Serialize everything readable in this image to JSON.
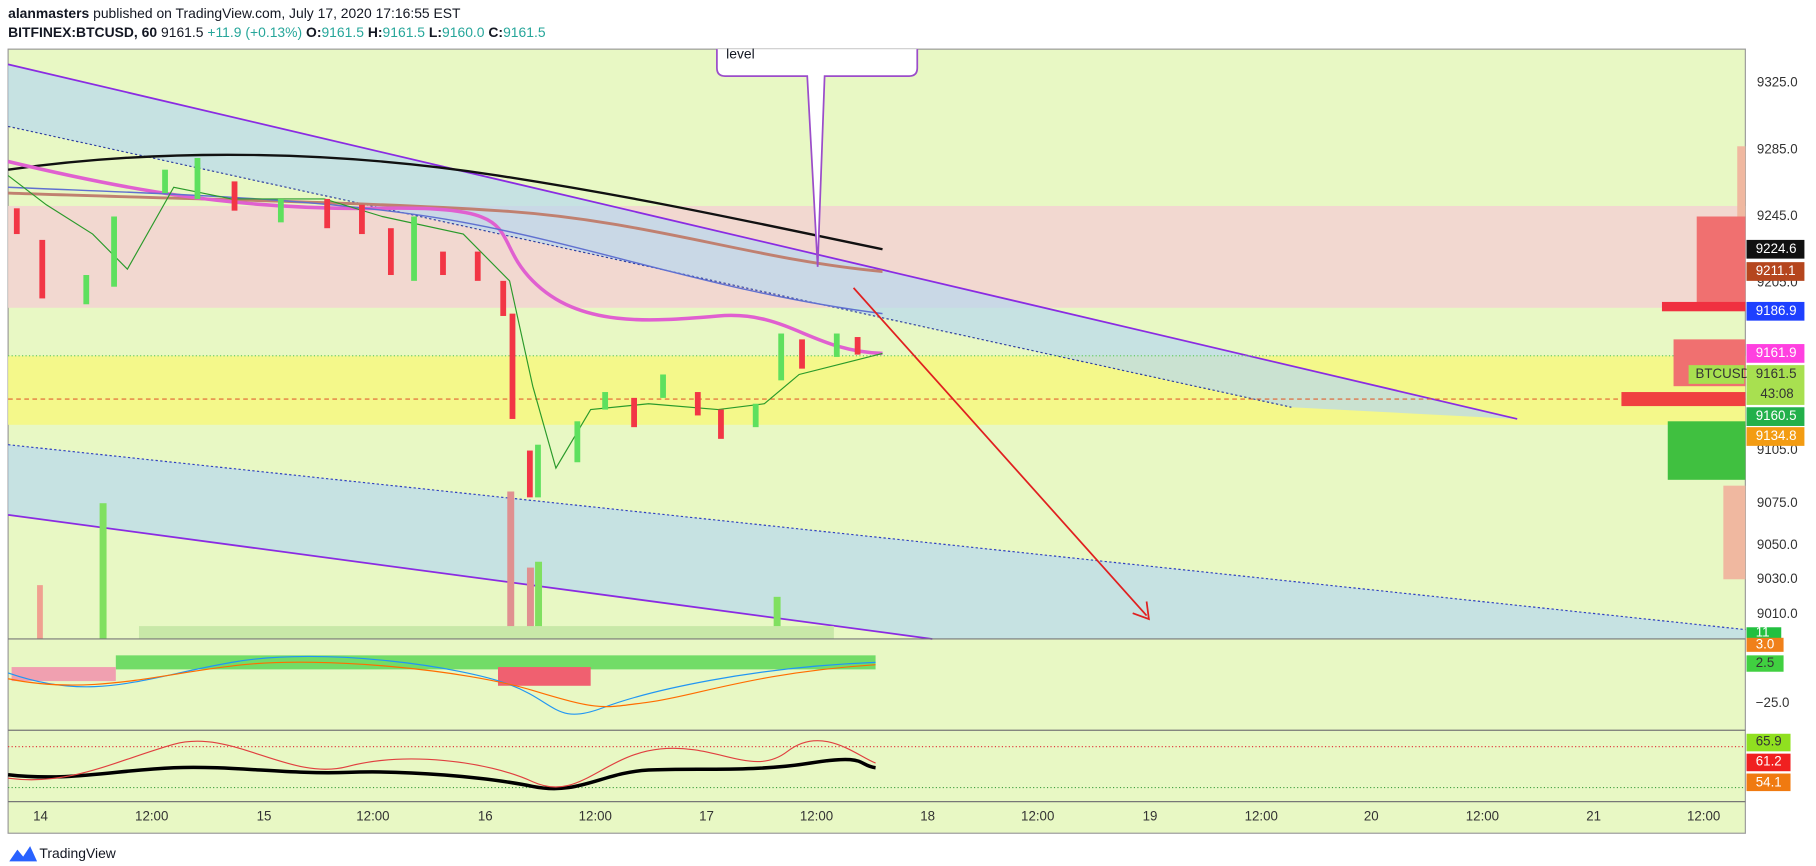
{
  "header": {
    "author": "alanmasters",
    "published": "published on TradingView.com, July 17, 2020 17:16:55 EST",
    "symbol": "BITFINEX:BTCUSD, 60",
    "last": "9161.5",
    "change": "+11.9 (+0.13%)",
    "open_label": "O:",
    "open": "9161.5",
    "high_label": "H:",
    "high": "9161.5",
    "low_label": "L:",
    "low": "9160.0",
    "close_label": "C:",
    "close": "9161.5"
  },
  "callout": "level",
  "price_axis": [
    "9325.0",
    "9285.0",
    "9245.0",
    "9205.0",
    "9105.0",
    "9075.0",
    "9050.0",
    "9030.0",
    "9010.0"
  ],
  "price_tags": {
    "black": "9224.6",
    "brown": "9211.1",
    "blue": "9186.9",
    "magenta": "9161.9",
    "symbol": "BTCUSD",
    "last": "9161.5",
    "countdown": "43:08",
    "green": "9160.5",
    "orange": "9134.8",
    "volume": "11"
  },
  "macd_axis": {
    "orange": "3.0",
    "green": "2.5",
    "level": "−25.0"
  },
  "rsi_axis": {
    "green": "65.9",
    "red": "61.2",
    "orange": "54.1"
  },
  "time_axis": [
    "14",
    "12:00",
    "15",
    "12:00",
    "16",
    "12:00",
    "17",
    "12:00",
    "18",
    "12:00",
    "19",
    "12:00",
    "20",
    "12:00",
    "21",
    "12:00"
  ],
  "footer": "TradingView"
}
